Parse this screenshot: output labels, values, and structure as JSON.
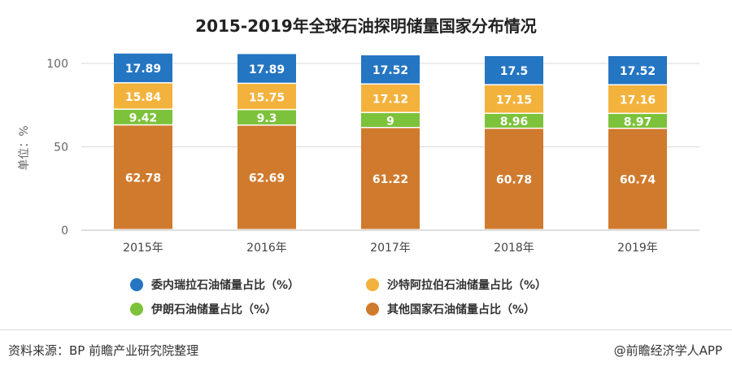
{
  "chart_data": {
    "type": "bar",
    "stacked": true,
    "title": "2015-2019年全球石油探明储量国家分布情况",
    "ylabel": "单位：%",
    "ylim": [
      0,
      100
    ],
    "yticks": [
      0,
      50,
      100
    ],
    "grid": true,
    "legend_position": "bottom",
    "categories": [
      "2015年",
      "2016年",
      "2017年",
      "2018年",
      "2019年"
    ],
    "series": [
      {
        "name": "其他国家石油储量占比（%）",
        "color": "#d07a2d",
        "values": [
          62.78,
          62.69,
          61.22,
          60.78,
          60.74
        ]
      },
      {
        "name": "伊朗石油储量占比（%）",
        "color": "#7cc23a",
        "values": [
          9.42,
          9.3,
          9,
          8.96,
          8.97
        ]
      },
      {
        "name": "沙特阿拉伯石油储量占比（%）",
        "color": "#f3b23c",
        "values": [
          15.84,
          15.75,
          17.12,
          17.15,
          17.16
        ]
      },
      {
        "name": "委内瑞拉石油储量占比（%）",
        "color": "#2475c2",
        "values": [
          17.89,
          17.89,
          17.52,
          17.5,
          17.52
        ]
      }
    ]
  },
  "legend": [
    {
      "label": "委内瑞拉石油储量占比（%）",
      "color": "#2475c2"
    },
    {
      "label": "沙特阿拉伯石油储量占比（%）",
      "color": "#f3b23c"
    },
    {
      "label": "伊朗石油储量占比（%）",
      "color": "#7cc23a"
    },
    {
      "label": "其他国家石油储量占比（%）",
      "color": "#d07a2d"
    }
  ],
  "footer": {
    "source": "资料来源：BP 前瞻产业研究院整理",
    "brand": "@前瞻经济学人APP"
  }
}
